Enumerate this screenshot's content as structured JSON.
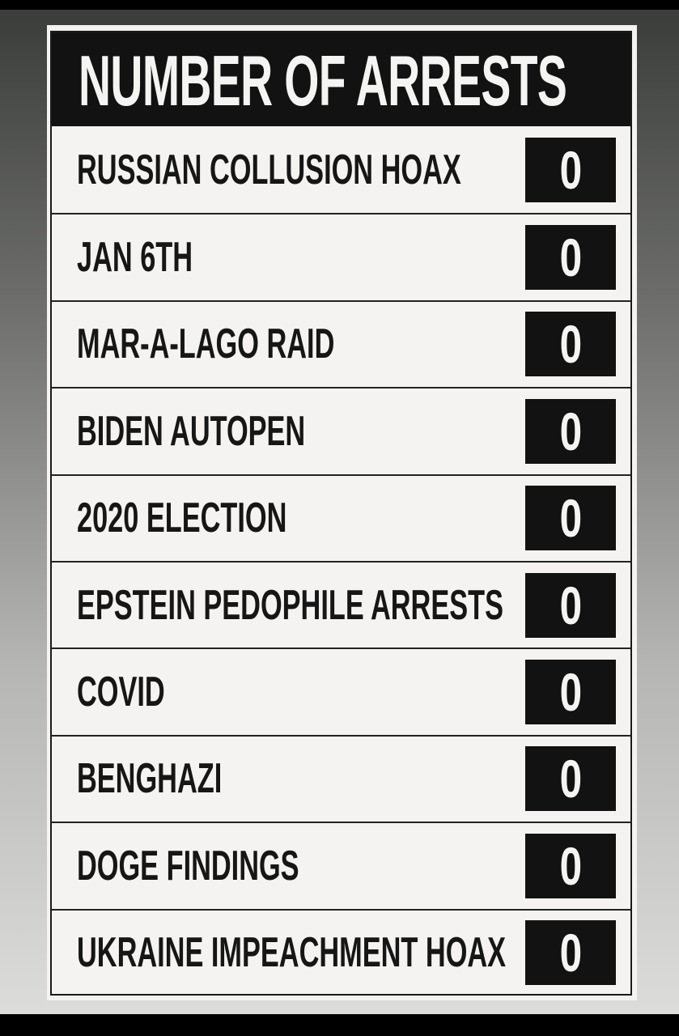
{
  "title": "NUMBER OF ARRESTS",
  "rows": [
    {
      "label": "RUSSIAN COLLUSION HOAX",
      "value": "0"
    },
    {
      "label": "JAN 6TH",
      "value": "0"
    },
    {
      "label": "MAR-A-LAGO RAID",
      "value": "0"
    },
    {
      "label": "BIDEN AUTOPEN",
      "value": "0"
    },
    {
      "label": "2020 ELECTION",
      "value": "0"
    },
    {
      "label": "EPSTEIN PEDOPHILE ARRESTS",
      "value": "0"
    },
    {
      "label": "COVID",
      "value": "0"
    },
    {
      "label": "BENGHAZI",
      "value": "0"
    },
    {
      "label": "DOGE FINDINGS",
      "value": "0"
    },
    {
      "label": "UKRAINE IMPEACHMENT HOAX",
      "value": "0"
    }
  ]
}
